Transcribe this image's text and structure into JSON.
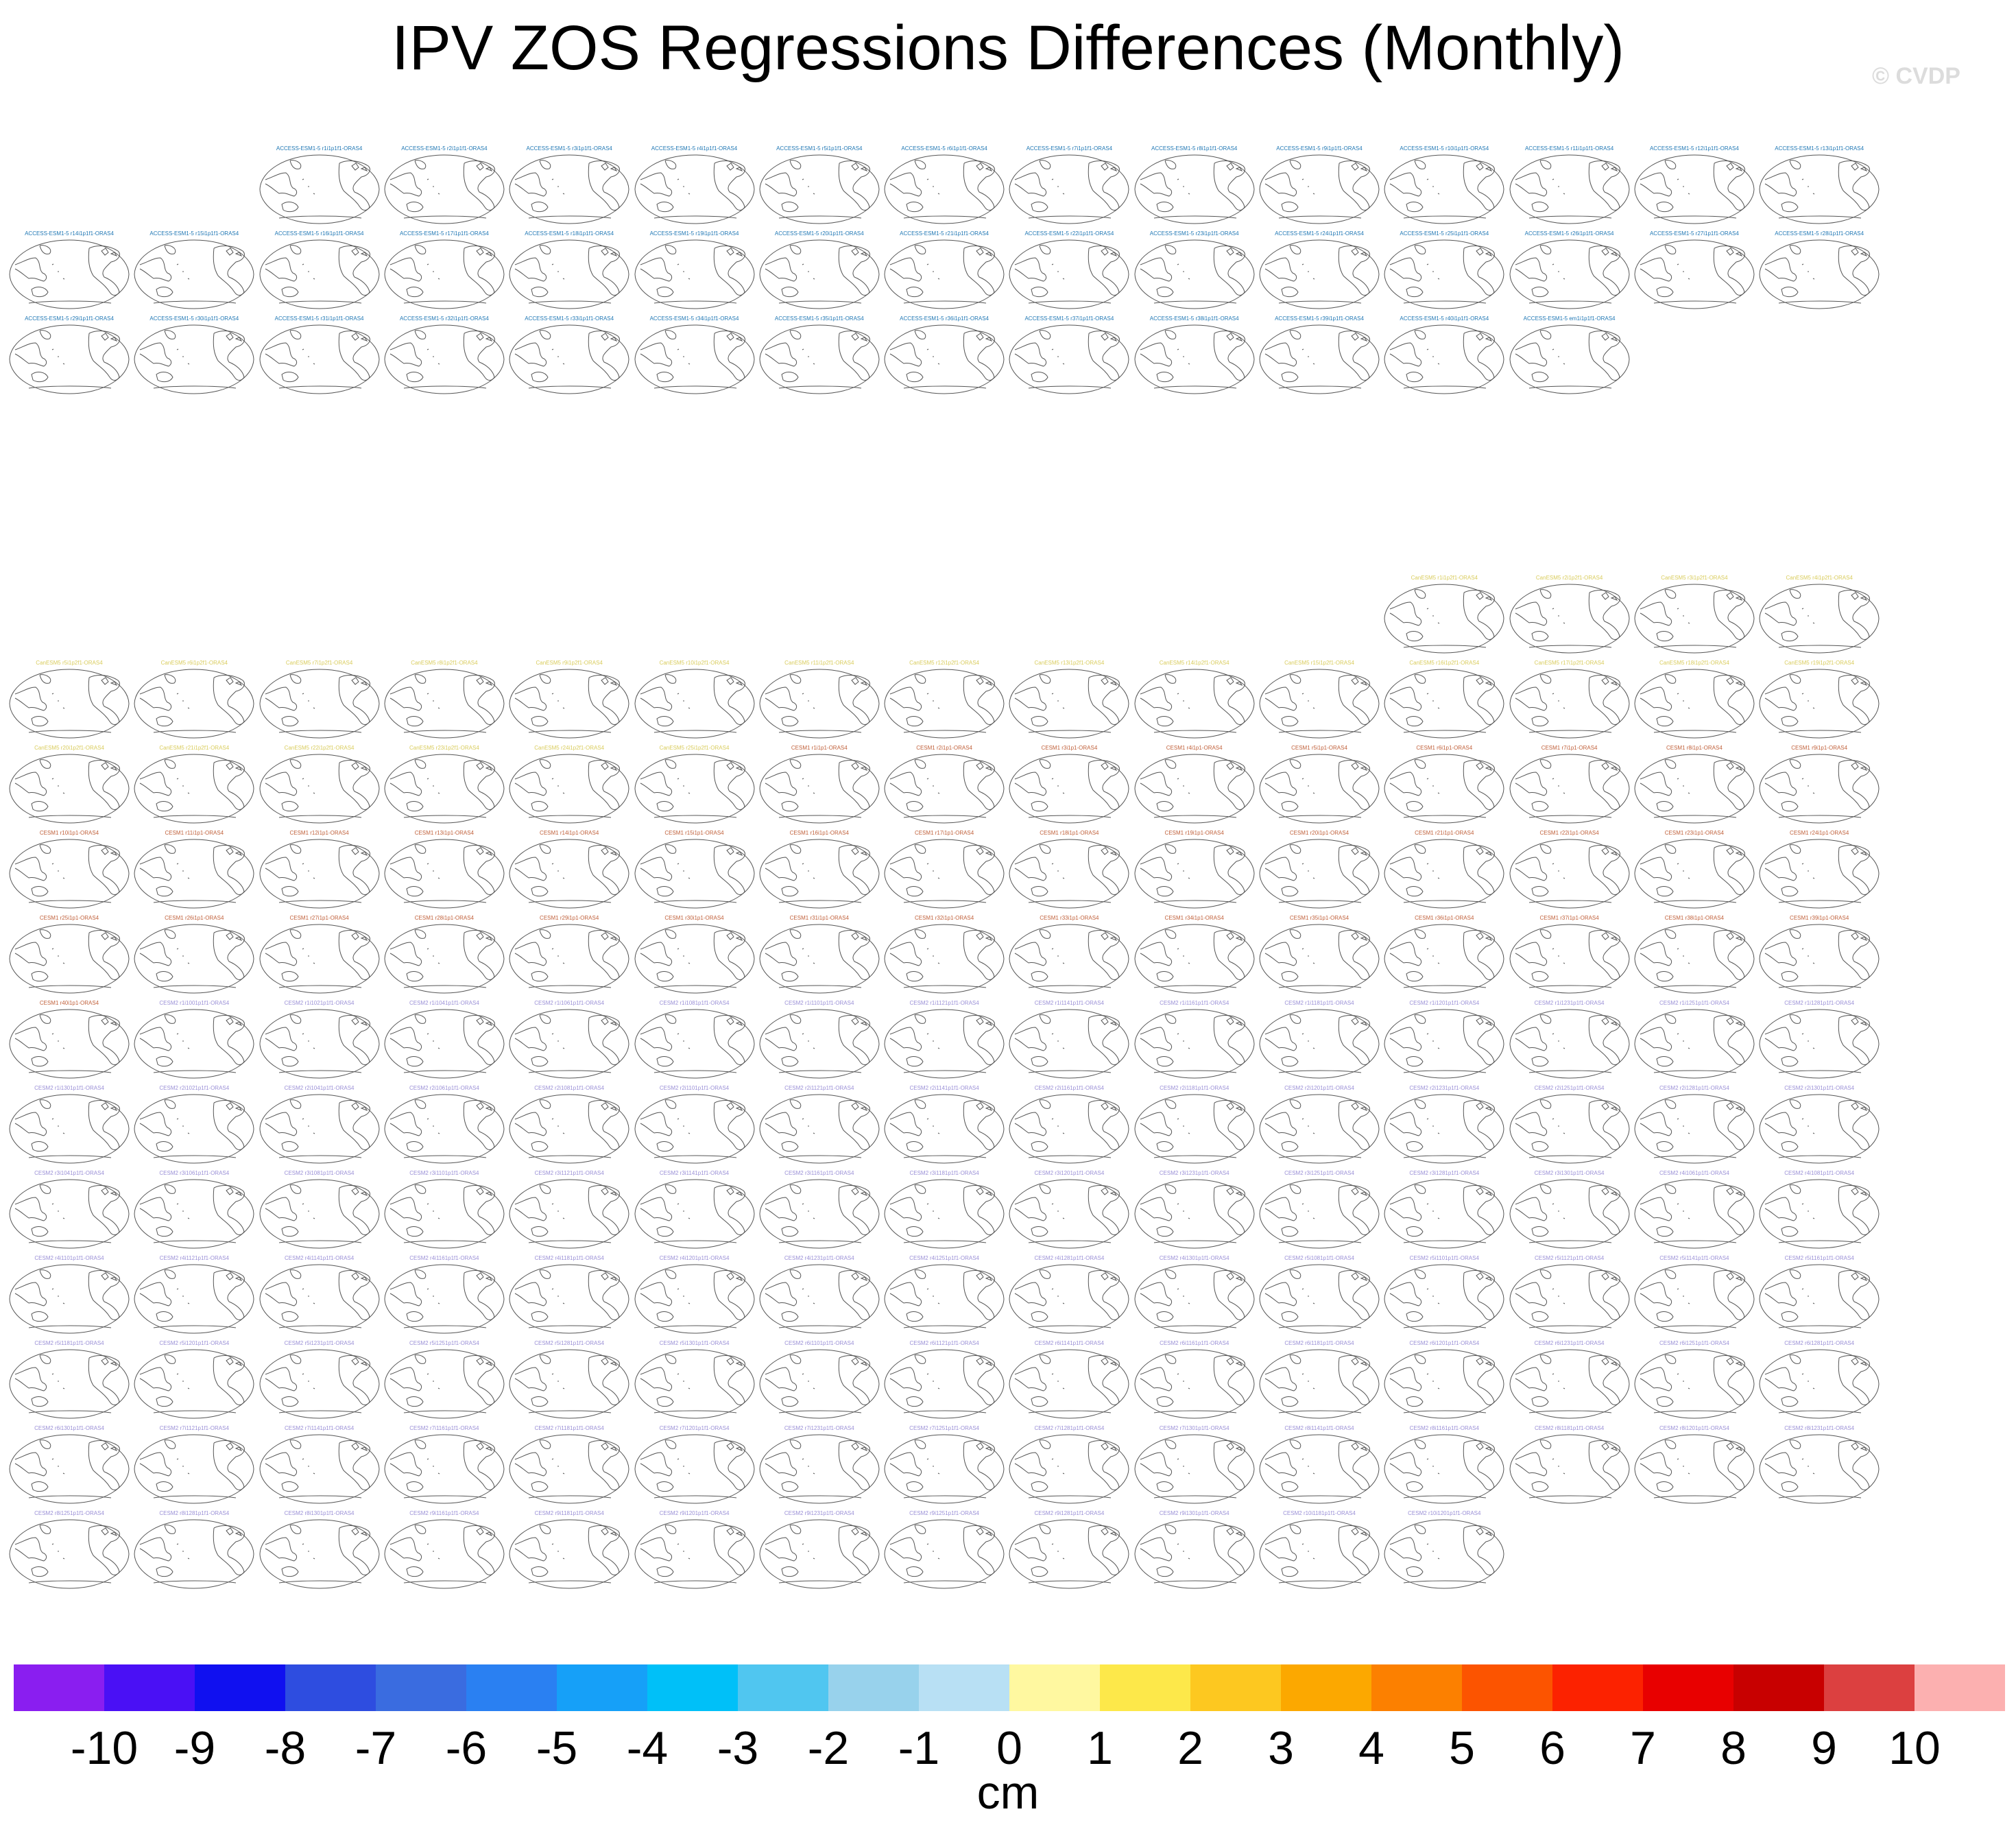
{
  "title": "IPV ZOS Regressions Differences (Monthly)",
  "watermark": "© CVDP",
  "chart_data": {
    "type": "heatmap",
    "description_of_grid": "small-multiple map panels (Robinson-style world maps, Pacific-centred) of model minus observation regression differences; no shading visible",
    "groups": [
      {
        "model": "ACCESS-ESM1-5",
        "label_color": "#1f77b4",
        "panel_count": 41,
        "rows": [
          [
            2,
            14
          ],
          [
            0,
            14
          ],
          [
            0,
            9
          ]
        ],
        "first_row_col_start": 2,
        "labels": [
          "ACCESS-ESM1-5 r1i1p1f1-ORAS4",
          "ACCESS-ESM1-5 r2i1p1f1-ORAS4",
          "ACCESS-ESM1-5 r3i1p1f1-ORAS4",
          "ACCESS-ESM1-5 r4i1p1f1-ORAS4",
          "ACCESS-ESM1-5 r5i1p1f1-ORAS4",
          "ACCESS-ESM1-5 r6i1p1f1-ORAS4",
          "ACCESS-ESM1-5 r7i1p1f1-ORAS4",
          "ACCESS-ESM1-5 r8i1p1f1-ORAS4",
          "ACCESS-ESM1-5 r9i1p1f1-ORAS4",
          "ACCESS-ESM1-5 r10i1p1f1-ORAS4",
          "ACCESS-ESM1-5 r11i1p1f1-ORAS4",
          "ACCESS-ESM1-5 r12i1p1f1-ORAS4",
          "ACCESS-ESM1-5 r13i1p1f1-ORAS4",
          "ACCESS-ESM1-5 r14i1p1f1-ORAS4",
          "ACCESS-ESM1-5 r15i1p1f1-ORAS4",
          "ACCESS-ESM1-5 r16i1p1f1-ORAS4",
          "ACCESS-ESM1-5 r17i1p1f1-ORAS4",
          "ACCESS-ESM1-5 r18i1p1f1-ORAS4",
          "ACCESS-ESM1-5 r19i1p1f1-ORAS4",
          "ACCESS-ESM1-5 r20i1p1f1-ORAS4",
          "ACCESS-ESM1-5 r21i1p1f1-ORAS4",
          "ACCESS-ESM1-5 r22i1p1f1-ORAS4",
          "ACCESS-ESM1-5 r23i1p1f1-ORAS4",
          "ACCESS-ESM1-5 r24i1p1f1-ORAS4",
          "ACCESS-ESM1-5 r25i1p1f1-ORAS4",
          "ACCESS-ESM1-5 r26i1p1f1-ORAS4",
          "ACCESS-ESM1-5 r27i1p1f1-ORAS4",
          "ACCESS-ESM1-5 r28i1p1f1-ORAS4",
          "ACCESS-ESM1-5 r29i1p1f1-ORAS4",
          "ACCESS-ESM1-5 r30i1p1f1-ORAS4",
          "ACCESS-ESM1-5 r31i1p1f1-ORAS4",
          "ACCESS-ESM1-5 r32i1p1f1-ORAS4",
          "ACCESS-ESM1-5 r33i1p1f1-ORAS4",
          "ACCESS-ESM1-5 r34i1p1f1-ORAS4",
          "ACCESS-ESM1-5 r35i1p1f1-ORAS4",
          "ACCESS-ESM1-5 r36i1p1f1-ORAS4",
          "ACCESS-ESM1-5 r37i1p1f1-ORAS4",
          "ACCESS-ESM1-5 r38i1p1f1-ORAS4",
          "ACCESS-ESM1-5 r39i1p1f1-ORAS4",
          "ACCESS-ESM1-5 r40i1p1f1-ORAS4",
          "ACCESS-ESM1-5 em1i1p1f1-ORAS4"
        ]
      },
      {
        "model": "CanESM5",
        "label_color": "#d9cc5c",
        "panel_count": 4,
        "labels": [
          "CanESM5 r1i1p2f1-ORAS4",
          "CanESM5 r2i1p2f1-ORAS4",
          "CanESM5 r3i1p2f1-ORAS4",
          "CanESM5 r4i1p2f1-ORAS4"
        ]
      },
      {
        "model": "CanESM5",
        "label_color": "#d9cc5c",
        "panel_count": 21,
        "labels": [
          "CanESM5 r5i1p2f1-ORAS4",
          "CanESM5 r6i1p2f1-ORAS4",
          "CanESM5 r7i1p2f1-ORAS4",
          "CanESM5 r8i1p2f1-ORAS4",
          "CanESM5 r9i1p2f1-ORAS4",
          "CanESM5 r10i1p2f1-ORAS4",
          "CanESM5 r11i1p2f1-ORAS4",
          "CanESM5 r12i1p2f1-ORAS4",
          "CanESM5 r13i1p2f1-ORAS4",
          "CanESM5 r14i1p2f1-ORAS4",
          "CanESM5 r15i1p2f1-ORAS4",
          "CanESM5 r16i1p2f1-ORAS4",
          "CanESM5 r17i1p2f1-ORAS4",
          "CanESM5 r18i1p2f1-ORAS4",
          "CanESM5 r19i1p2f1-ORAS4",
          "CanESM5 r20i1p2f1-ORAS4",
          "CanESM5 r21i1p2f1-ORAS4",
          "CanESM5 r22i1p2f1-ORAS4",
          "CanESM5 r23i1p2f1-ORAS4",
          "CanESM5 r24i1p2f1-ORAS4",
          "CanESM5 r25i1p2f1-ORAS4"
        ]
      },
      {
        "model": "CESM1",
        "label_color": "#c0603a",
        "panel_count": 40,
        "labels": [
          "CESM1 r1i1p1-ORAS4",
          "CESM1 r2i1p1-ORAS4",
          "CESM1 r3i1p1-ORAS4",
          "CESM1 r4i1p1-ORAS4",
          "CESM1 r5i1p1-ORAS4",
          "CESM1 r6i1p1-ORAS4",
          "CESM1 r7i1p1-ORAS4",
          "CESM1 r8i1p1-ORAS4",
          "CESM1 r9i1p1-ORAS4",
          "CESM1 r10i1p1-ORAS4",
          "CESM1 r11i1p1-ORAS4",
          "CESM1 r12i1p1-ORAS4",
          "CESM1 r13i1p1-ORAS4",
          "CESM1 r14i1p1-ORAS4",
          "CESM1 r15i1p1-ORAS4",
          "CESM1 r16i1p1-ORAS4",
          "CESM1 r17i1p1-ORAS4",
          "CESM1 r18i1p1-ORAS4",
          "CESM1 r19i1p1-ORAS4",
          "CESM1 r20i1p1-ORAS4",
          "CESM1 r21i1p1-ORAS4",
          "CESM1 r22i1p1-ORAS4",
          "CESM1 r23i1p1-ORAS4",
          "CESM1 r24i1p1-ORAS4",
          "CESM1 r25i1p1-ORAS4",
          "CESM1 r26i1p1-ORAS4",
          "CESM1 r27i1p1-ORAS4",
          "CESM1 r28i1p1-ORAS4",
          "CESM1 r29i1p1-ORAS4",
          "CESM1 r30i1p1-ORAS4",
          "CESM1 r31i1p1-ORAS4",
          "CESM1 r32i1p1-ORAS4",
          "CESM1 r33i1p1-ORAS4",
          "CESM1 r34i1p1-ORAS4",
          "CESM1 r35i1p1-ORAS4",
          "CESM1 r36i1p1-ORAS4",
          "CESM1 r37i1p1-ORAS4",
          "CESM1 r38i1p1-ORAS4",
          "CESM1 r39i1p1-ORAS4",
          "CESM1 r40i1p1-ORAS4"
        ]
      },
      {
        "model": "CESM2",
        "label_color": "#9a8fd6",
        "panel_count": 101,
        "labels": [
          "CESM2 r1i1001p1f1-ORAS4",
          "CESM2 r1i1021p1f1-ORAS4",
          "CESM2 r1i1041p1f1-ORAS4",
          "CESM2 r1i1061p1f1-ORAS4",
          "CESM2 r1i1081p1f1-ORAS4",
          "CESM2 r1i1101p1f1-ORAS4",
          "CESM2 r1i1121p1f1-ORAS4",
          "CESM2 r1i1141p1f1-ORAS4",
          "CESM2 r1i1161p1f1-ORAS4",
          "CESM2 r1i1181p1f1-ORAS4",
          "CESM2 r1i1201p1f1-ORAS4",
          "CESM2 r1i1231p1f1-ORAS4",
          "CESM2 r1i1251p1f1-ORAS4",
          "CESM2 r1i1281p1f1-ORAS4",
          "CESM2 r1i1301p1f1-ORAS4",
          "CESM2 r2i1021p1f1-ORAS4",
          "CESM2 r2i1041p1f1-ORAS4",
          "CESM2 r2i1061p1f1-ORAS4",
          "CESM2 r2i1081p1f1-ORAS4",
          "CESM2 r2i1101p1f1-ORAS4",
          "CESM2 r2i1121p1f1-ORAS4",
          "CESM2 r2i1141p1f1-ORAS4",
          "CESM2 r2i1161p1f1-ORAS4",
          "CESM2 r2i1181p1f1-ORAS4",
          "CESM2 r2i1201p1f1-ORAS4",
          "CESM2 r2i1231p1f1-ORAS4",
          "CESM2 r2i1251p1f1-ORAS4",
          "CESM2 r2i1281p1f1-ORAS4",
          "CESM2 r2i1301p1f1-ORAS4",
          "CESM2 r3i1041p1f1-ORAS4",
          "CESM2 r3i1061p1f1-ORAS4",
          "CESM2 r3i1081p1f1-ORAS4",
          "CESM2 r3i1101p1f1-ORAS4",
          "CESM2 r3i1121p1f1-ORAS4",
          "CESM2 r3i1141p1f1-ORAS4",
          "CESM2 r3i1161p1f1-ORAS4",
          "CESM2 r3i1181p1f1-ORAS4",
          "CESM2 r3i1201p1f1-ORAS4",
          "CESM2 r3i1231p1f1-ORAS4",
          "CESM2 r3i1251p1f1-ORAS4",
          "CESM2 r3i1281p1f1-ORAS4",
          "CESM2 r3i1301p1f1-ORAS4",
          "CESM2 r4i1061p1f1-ORAS4",
          "CESM2 r4i1081p1f1-ORAS4",
          "CESM2 r4i1101p1f1-ORAS4",
          "CESM2 r4i1121p1f1-ORAS4",
          "CESM2 r4i1141p1f1-ORAS4",
          "CESM2 r4i1161p1f1-ORAS4",
          "CESM2 r4i1181p1f1-ORAS4",
          "CESM2 r4i1201p1f1-ORAS4",
          "CESM2 r4i1231p1f1-ORAS4",
          "CESM2 r4i1251p1f1-ORAS4",
          "CESM2 r4i1281p1f1-ORAS4",
          "CESM2 r4i1301p1f1-ORAS4",
          "CESM2 r5i1081p1f1-ORAS4",
          "CESM2 r5i1101p1f1-ORAS4",
          "CESM2 r5i1121p1f1-ORAS4",
          "CESM2 r5i1141p1f1-ORAS4",
          "CESM2 r5i1161p1f1-ORAS4",
          "CESM2 r5i1181p1f1-ORAS4",
          "CESM2 r5i1201p1f1-ORAS4",
          "CESM2 r5i1231p1f1-ORAS4",
          "CESM2 r5i1251p1f1-ORAS4",
          "CESM2 r5i1281p1f1-ORAS4",
          "CESM2 r5i1301p1f1-ORAS4",
          "CESM2 r6i1101p1f1-ORAS4",
          "CESM2 r6i1121p1f1-ORAS4",
          "CESM2 r6i1141p1f1-ORAS4",
          "CESM2 r6i1161p1f1-ORAS4",
          "CESM2 r6i1181p1f1-ORAS4",
          "CESM2 r6i1201p1f1-ORAS4",
          "CESM2 r6i1231p1f1-ORAS4",
          "CESM2 r6i1251p1f1-ORAS4",
          "CESM2 r6i1281p1f1-ORAS4",
          "CESM2 r6i1301p1f1-ORAS4",
          "CESM2 r7i1121p1f1-ORAS4",
          "CESM2 r7i1141p1f1-ORAS4",
          "CESM2 r7i1161p1f1-ORAS4",
          "CESM2 r7i1181p1f1-ORAS4",
          "CESM2 r7i1201p1f1-ORAS4",
          "CESM2 r7i1231p1f1-ORAS4",
          "CESM2 r7i1251p1f1-ORAS4",
          "CESM2 r7i1281p1f1-ORAS4",
          "CESM2 r7i1301p1f1-ORAS4",
          "CESM2 r8i1141p1f1-ORAS4",
          "CESM2 r8i1161p1f1-ORAS4",
          "CESM2 r8i1181p1f1-ORAS4",
          "CESM2 r8i1201p1f1-ORAS4",
          "CESM2 r8i1231p1f1-ORAS4",
          "CESM2 r8i1251p1f1-ORAS4",
          "CESM2 r8i1281p1f1-ORAS4",
          "CESM2 r8i1301p1f1-ORAS4",
          "CESM2 r9i1161p1f1-ORAS4",
          "CESM2 r9i1181p1f1-ORAS4",
          "CESM2 r9i1201p1f1-ORAS4",
          "CESM2 r9i1231p1f1-ORAS4",
          "CESM2 r9i1251p1f1-ORAS4",
          "CESM2 r9i1281p1f1-ORAS4",
          "CESM2 r9i1301p1f1-ORAS4",
          "CESM2 r10i1181p1f1-ORAS4",
          "CESM2 r10i1201p1f1-ORAS4"
        ]
      }
    ],
    "colorbar": {
      "tick_labels": [
        "-10",
        "-9",
        "-8",
        "-7",
        "-6",
        "-5",
        "-4",
        "-3",
        "-2",
        "-1",
        "0",
        "1",
        "2",
        "3",
        "4",
        "5",
        "6",
        "7",
        "8",
        "9",
        "10"
      ],
      "units": "cm",
      "colors": [
        "#8a1ef0",
        "#4a10f5",
        "#1010f0",
        "#2e4de0",
        "#3a6ce0",
        "#2a80f2",
        "#16a0f8",
        "#00c0f8",
        "#50c6f0",
        "#98d2ec",
        "#b8e0f4",
        "#fff8a0",
        "#fde84a",
        "#fdc820",
        "#fca800",
        "#fc8000",
        "#fc5400",
        "#fc2200",
        "#e80000",
        "#c80000",
        "#dc4040",
        "#fcb0b0"
      ],
      "range": [
        -10,
        10
      ]
    }
  }
}
